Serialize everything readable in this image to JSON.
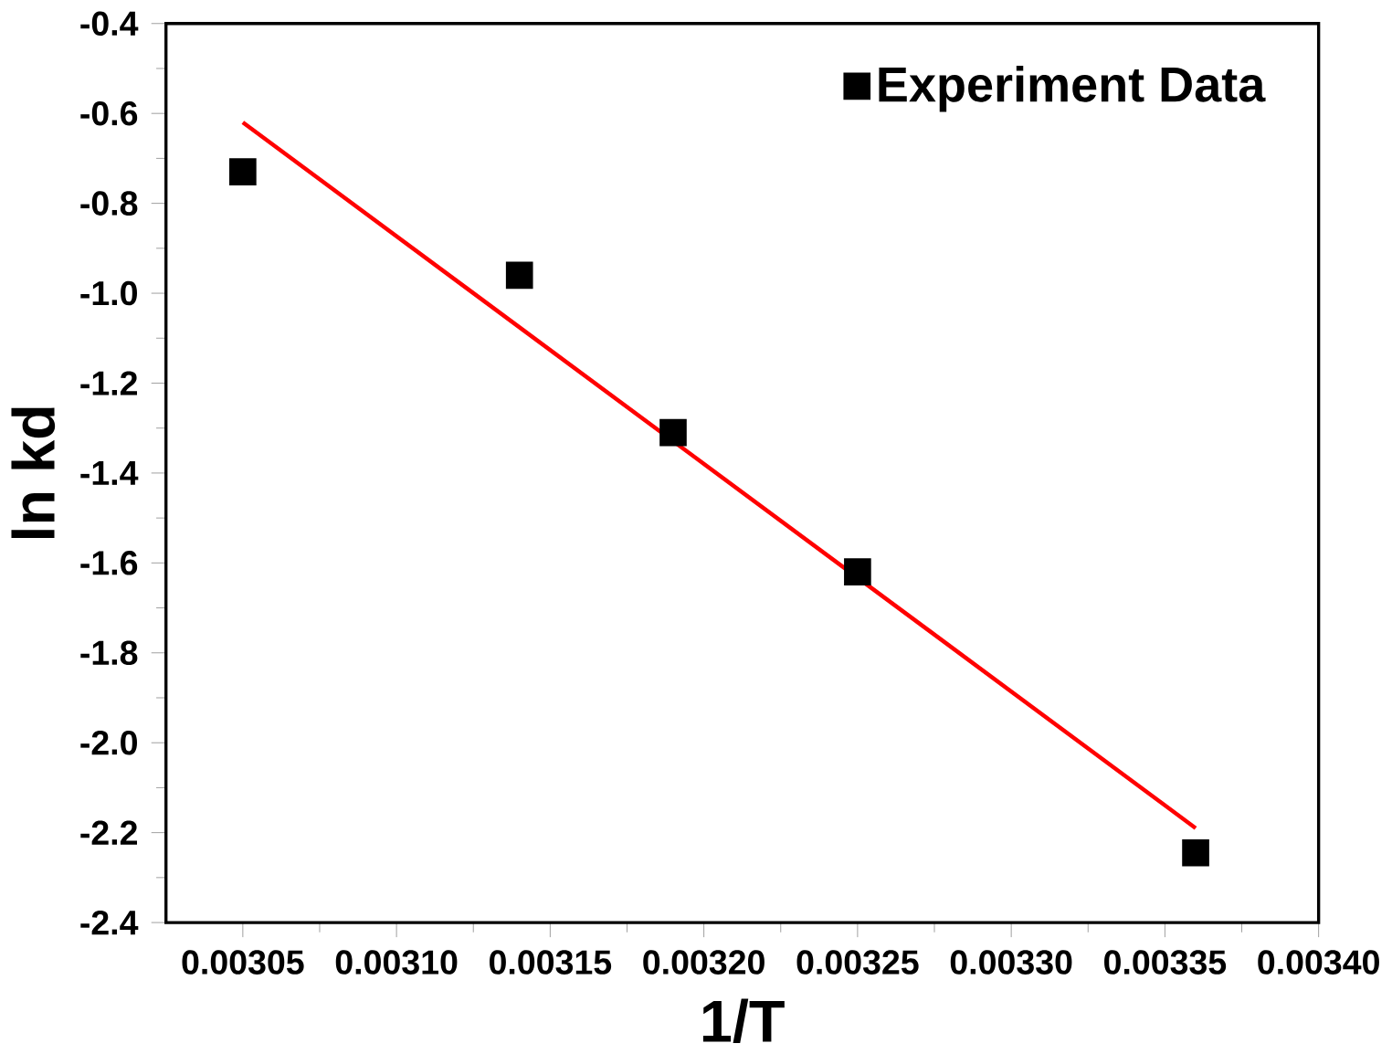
{
  "chart_data": {
    "type": "scatter",
    "xlabel": "1/T",
    "ylabel": "ln kd",
    "xlim": [
      0.003025,
      0.0034
    ],
    "ylim": [
      -2.4,
      -0.4
    ],
    "xticks": [
      {
        "value": 0.00305,
        "label": "0.00305"
      },
      {
        "value": 0.0031,
        "label": "0.00310"
      },
      {
        "value": 0.00315,
        "label": "0.00315"
      },
      {
        "value": 0.0032,
        "label": "0.00320"
      },
      {
        "value": 0.00325,
        "label": "0.00325"
      },
      {
        "value": 0.0033,
        "label": "0.00330"
      },
      {
        "value": 0.00335,
        "label": "0.00335"
      },
      {
        "value": 0.0034,
        "label": "0.00340"
      }
    ],
    "yticks": [
      {
        "value": -2.4,
        "label": "-2.4"
      },
      {
        "value": -2.2,
        "label": "-2.2"
      },
      {
        "value": -2.0,
        "label": "-2.0"
      },
      {
        "value": -1.8,
        "label": "-1.8"
      },
      {
        "value": -1.6,
        "label": "-1.6"
      },
      {
        "value": -1.4,
        "label": "-1.4"
      },
      {
        "value": -1.2,
        "label": "-1.2"
      },
      {
        "value": -1.0,
        "label": "-1.0"
      },
      {
        "value": -0.8,
        "label": "-0.8"
      },
      {
        "value": -0.6,
        "label": "-0.6"
      },
      {
        "value": -0.4,
        "label": "-0.4"
      }
    ],
    "legend": "top right",
    "grid": false,
    "series": [
      {
        "name": "Experiment Data",
        "marker": "square",
        "color": "#000000",
        "x": [
          0.00305,
          0.00314,
          0.00319,
          0.00325,
          0.00336
        ],
        "values": [
          -0.73,
          -0.96,
          -1.31,
          -1.62,
          -2.245
        ]
      },
      {
        "type": "line",
        "color": "#ff0000",
        "marker": "none",
        "line_style": "solid",
        "x": [
          0.00305,
          0.00336
        ],
        "values": [
          -0.62,
          -2.19
        ]
      }
    ]
  }
}
